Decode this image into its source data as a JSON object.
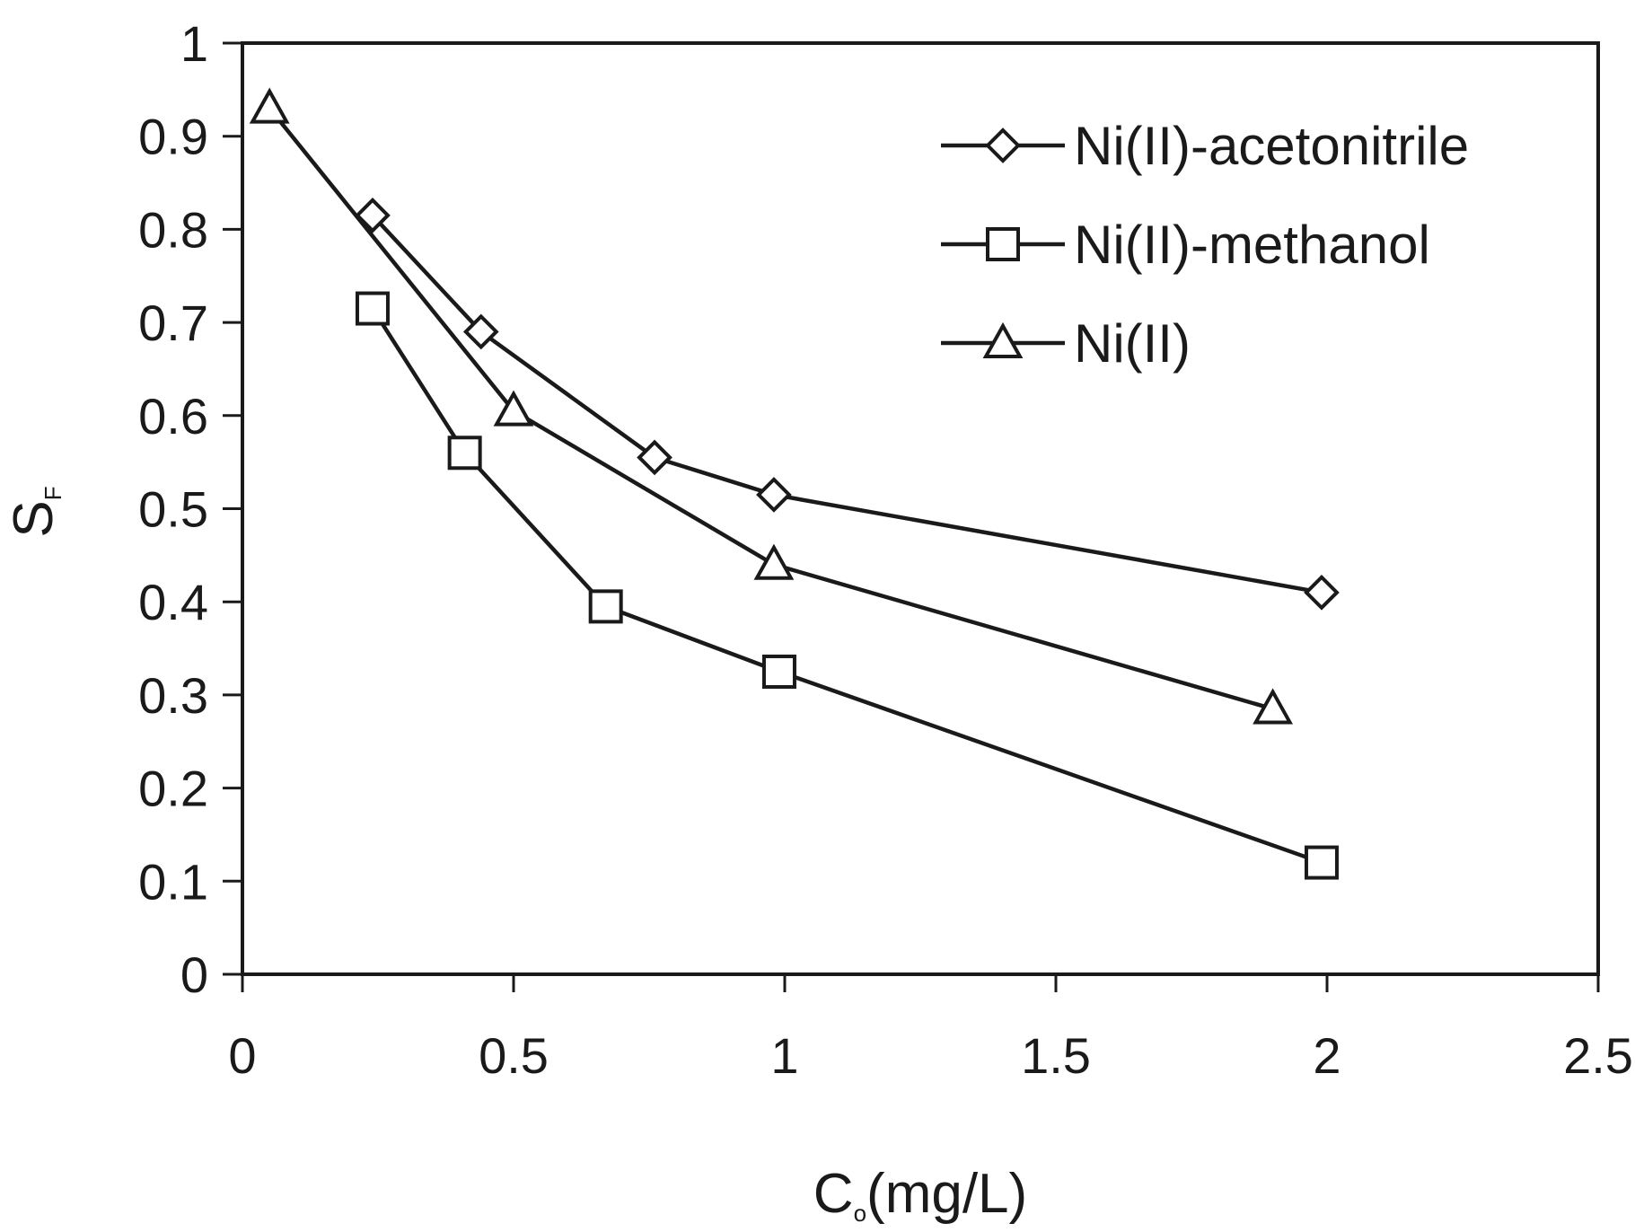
{
  "chart_data": {
    "type": "line",
    "xlabel": "C",
    "xlabel_sub": "o",
    "xlabel_unit": "(mg/L)",
    "ylabel": "S",
    "ylabel_sub": "F",
    "xlim": [
      0,
      2.5
    ],
    "ylim": [
      0,
      1
    ],
    "xticks": [
      0,
      0.5,
      1,
      1.5,
      2,
      2.5
    ],
    "xtick_labels": [
      "0",
      "0.5",
      "1",
      "1.5",
      "2",
      "2.5"
    ],
    "yticks": [
      0,
      0.1,
      0.2,
      0.3,
      0.4,
      0.5,
      0.6,
      0.7,
      0.8,
      0.9,
      1
    ],
    "ytick_labels": [
      "0",
      "0.1",
      "0.2",
      "0.3",
      "0.4",
      "0.5",
      "0.6",
      "0.7",
      "0.8",
      "0.9",
      "1"
    ],
    "grid": false,
    "legend_position": "top-right",
    "line_color": "#1a1a1a",
    "series": [
      {
        "name": "Ni(II)-acetonitrile",
        "marker": "diamond",
        "x": [
          0.24,
          0.44,
          0.76,
          0.98,
          1.99
        ],
        "y": [
          0.815,
          0.69,
          0.555,
          0.515,
          0.41
        ]
      },
      {
        "name": "Ni(II)-methanol",
        "marker": "square",
        "x": [
          0.24,
          0.41,
          0.67,
          0.99,
          1.99
        ],
        "y": [
          0.715,
          0.56,
          0.395,
          0.325,
          0.12
        ]
      },
      {
        "name": "Ni(II)",
        "marker": "triangle",
        "x": [
          0.05,
          0.5,
          0.98,
          1.9
        ],
        "y": [
          0.93,
          0.605,
          0.44,
          0.285
        ]
      }
    ]
  }
}
